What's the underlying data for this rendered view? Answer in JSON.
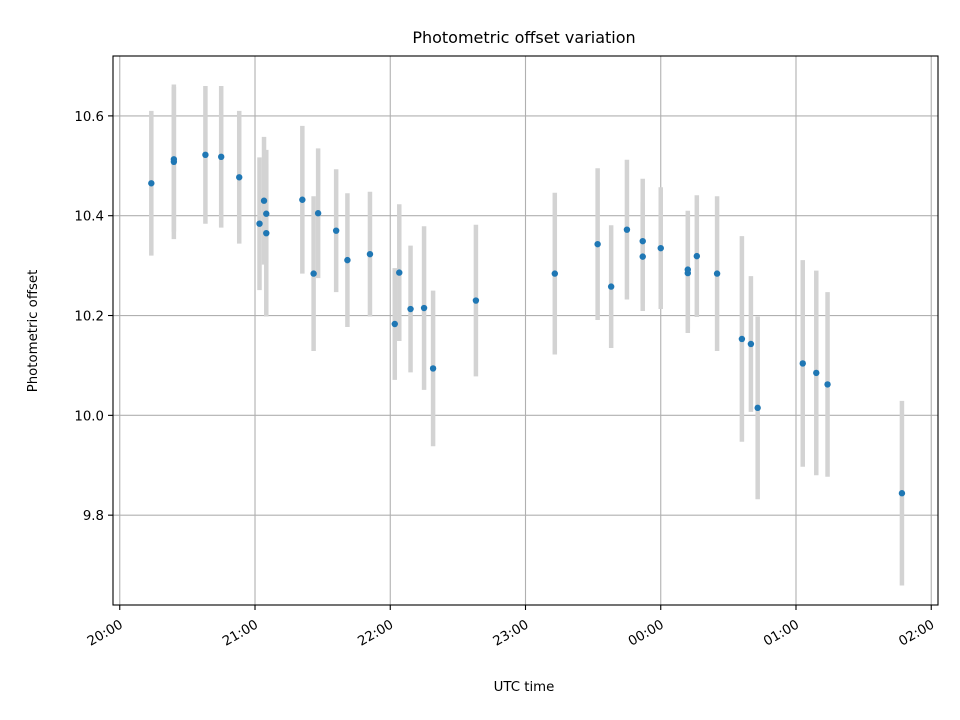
{
  "chart_data": {
    "type": "scatter",
    "title": "Photometric offset variation",
    "xlabel": "UTC time",
    "ylabel": "Photometric offset",
    "x_unit": "UTC clock time (HH:MM)",
    "xlim": [
      "19:57",
      "02:03"
    ],
    "ylim": [
      9.62,
      10.72
    ],
    "x_ticks": [
      "20:00",
      "21:00",
      "22:00",
      "23:00",
      "00:00",
      "01:00",
      "02:00"
    ],
    "y_ticks": [
      9.8,
      10.0,
      10.2,
      10.4,
      10.6
    ],
    "grid": true,
    "marker_color": "#1f77b4",
    "errorbar_color": "#d3d3d3",
    "series": [
      {
        "points": [
          {
            "x": "20:14",
            "y": 10.465,
            "err": 0.145
          },
          {
            "x": "20:24",
            "y": 10.508,
            "err": 0.155
          },
          {
            "x": "20:24",
            "y": 10.513,
            "err": 0.145
          },
          {
            "x": "20:38",
            "y": 10.522,
            "err": 0.138
          },
          {
            "x": "20:45",
            "y": 10.518,
            "err": 0.142
          },
          {
            "x": "20:53",
            "y": 10.477,
            "err": 0.133
          },
          {
            "x": "21:02",
            "y": 10.384,
            "err": 0.133
          },
          {
            "x": "21:04",
            "y": 10.43,
            "err": 0.128
          },
          {
            "x": "21:05",
            "y": 10.404,
            "err": 0.1
          },
          {
            "x": "21:05",
            "y": 10.365,
            "err": 0.167
          },
          {
            "x": "21:21",
            "y": 10.432,
            "err": 0.148
          },
          {
            "x": "21:26",
            "y": 10.284,
            "err": 0.155
          },
          {
            "x": "21:28",
            "y": 10.405,
            "err": 0.13
          },
          {
            "x": "21:36",
            "y": 10.37,
            "err": 0.123
          },
          {
            "x": "21:41",
            "y": 10.311,
            "err": 0.134
          },
          {
            "x": "21:51",
            "y": 10.323,
            "err": 0.125
          },
          {
            "x": "22:02",
            "y": 10.183,
            "err": 0.112
          },
          {
            "x": "22:04",
            "y": 10.286,
            "err": 0.137
          },
          {
            "x": "22:09",
            "y": 10.213,
            "err": 0.127
          },
          {
            "x": "22:15",
            "y": 10.215,
            "err": 0.164
          },
          {
            "x": "22:19",
            "y": 10.094,
            "err": 0.156
          },
          {
            "x": "22:38",
            "y": 10.23,
            "err": 0.152
          },
          {
            "x": "23:13",
            "y": 10.284,
            "err": 0.162
          },
          {
            "x": "23:32",
            "y": 10.343,
            "err": 0.152
          },
          {
            "x": "23:38",
            "y": 10.258,
            "err": 0.123
          },
          {
            "x": "23:45",
            "y": 10.372,
            "err": 0.14
          },
          {
            "x": "23:52",
            "y": 10.318,
            "err": 0.109
          },
          {
            "x": "23:52",
            "y": 10.349,
            "err": 0.125
          },
          {
            "x": "00:00",
            "y": 10.335,
            "err": 0.122
          },
          {
            "x": "00:12",
            "y": 10.285,
            "err": 0.12
          },
          {
            "x": "00:12",
            "y": 10.292,
            "err": 0.118
          },
          {
            "x": "00:16",
            "y": 10.319,
            "err": 0.122
          },
          {
            "x": "00:25",
            "y": 10.284,
            "err": 0.155
          },
          {
            "x": "00:36",
            "y": 10.153,
            "err": 0.206
          },
          {
            "x": "00:40",
            "y": 10.143,
            "err": 0.136
          },
          {
            "x": "00:43",
            "y": 10.015,
            "err": 0.183
          },
          {
            "x": "01:03",
            "y": 10.104,
            "err": 0.207
          },
          {
            "x": "01:09",
            "y": 10.085,
            "err": 0.205
          },
          {
            "x": "01:14",
            "y": 10.062,
            "err": 0.185
          },
          {
            "x": "01:47",
            "y": 9.844,
            "err": 0.185
          }
        ]
      }
    ]
  }
}
